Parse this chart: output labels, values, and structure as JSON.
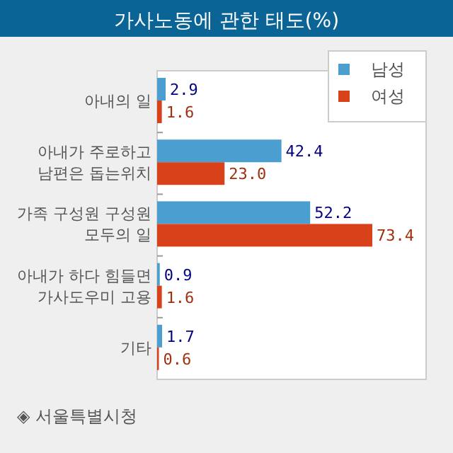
{
  "chart_data": {
    "type": "bar",
    "orientation": "horizontal",
    "title": "가사노동에 관한 태도(%)",
    "categories": [
      "아내의 일",
      "아내가 주로하고 남편은 돕는위치",
      "가족 구성원 구성원 모두의 일",
      "아내가 하다 힘들면 가사도우미 고용",
      "기타"
    ],
    "series": [
      {
        "name": "남성",
        "color": "#4a9fd0",
        "values": [
          2.9,
          42.4,
          52.2,
          0.9,
          1.7
        ],
        "value_labels": [
          "2.9",
          "42.4",
          "52.2",
          "0.9",
          "1.7"
        ]
      },
      {
        "name": "여성",
        "color": "#d9411a",
        "values": [
          1.6,
          23.0,
          73.4,
          1.6,
          0.6
        ],
        "value_labels": [
          "1.6",
          "23.0",
          "73.4",
          "1.6",
          "0.6"
        ]
      }
    ],
    "legend": "top right",
    "annotations": [
      "◈ 서울특별시청"
    ]
  }
}
